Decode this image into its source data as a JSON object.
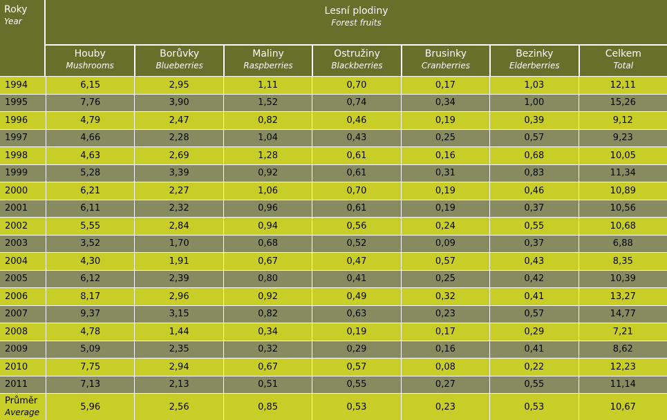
{
  "header": {
    "year_cz": "Roky",
    "year_en": "Year",
    "group_cz": "Lesní plodiny",
    "group_en": "Forest fruits",
    "columns": [
      {
        "cz": "Houby",
        "en": "Mushrooms"
      },
      {
        "cz": "Borůvky",
        "en": "Blueberries"
      },
      {
        "cz": "Maliny",
        "en": "Raspberries"
      },
      {
        "cz": "Ostružiny",
        "en": "Blackberries"
      },
      {
        "cz": "Brusinky",
        "en": "Cranberries"
      },
      {
        "cz": "Bezinky",
        "en": "Elderberries"
      },
      {
        "cz": "Celkem",
        "en": "Total"
      }
    ]
  },
  "rows": [
    {
      "year": "1994",
      "values": [
        "6,15",
        "2,95",
        "1,11",
        "0,70",
        "0,17",
        "1,03",
        "12,11"
      ]
    },
    {
      "year": "1995",
      "values": [
        "7,76",
        "3,90",
        "1,52",
        "0,74",
        "0,34",
        "1,00",
        "15,26"
      ]
    },
    {
      "year": "1996",
      "values": [
        "4,79",
        "2,47",
        "0,82",
        "0,46",
        "0,19",
        "0,39",
        "9,12"
      ]
    },
    {
      "year": "1997",
      "values": [
        "4,66",
        "2,28",
        "1,04",
        "0,43",
        "0,25",
        "0,57",
        "9,23"
      ]
    },
    {
      "year": "1998",
      "values": [
        "4,63",
        "2,69",
        "1,28",
        "0,61",
        "0,16",
        "0,68",
        "10,05"
      ]
    },
    {
      "year": "1999",
      "values": [
        "5,28",
        "3,39",
        "0,92",
        "0,61",
        "0,31",
        "0,83",
        "11,34"
      ]
    },
    {
      "year": "2000",
      "values": [
        "6,21",
        "2,27",
        "1,06",
        "0,70",
        "0,19",
        "0,46",
        "10,89"
      ]
    },
    {
      "year": "2001",
      "values": [
        "6,11",
        "2,32",
        "0,96",
        "0,61",
        "0,19",
        "0,37",
        "10,56"
      ]
    },
    {
      "year": "2002",
      "values": [
        "5,55",
        "2,84",
        "0,94",
        "0,56",
        "0,24",
        "0,55",
        "10,68"
      ]
    },
    {
      "year": "2003",
      "values": [
        "3,52",
        "1,70",
        "0,68",
        "0,52",
        "0,09",
        "0,37",
        "6,88"
      ]
    },
    {
      "year": "2004",
      "values": [
        "4,30",
        "1,91",
        "0,67",
        "0,47",
        "0,57",
        "0,43",
        "8,35"
      ]
    },
    {
      "year": "2005",
      "values": [
        "6,12",
        "2,39",
        "0,80",
        "0,41",
        "0,25",
        "0,42",
        "10,39"
      ]
    },
    {
      "year": "2006",
      "values": [
        "8,17",
        "2,96",
        "0,92",
        "0,49",
        "0,32",
        "0,41",
        "13,27"
      ]
    },
    {
      "year": "2007",
      "values": [
        "9,37",
        "3,15",
        "0,82",
        "0,63",
        "0,23",
        "0,57",
        "14,77"
      ]
    },
    {
      "year": "2008",
      "values": [
        "4,78",
        "1,44",
        "0,34",
        "0,19",
        "0,17",
        "0,29",
        "7,21"
      ]
    },
    {
      "year": "2009",
      "values": [
        "5,09",
        "2,35",
        "0,32",
        "0,29",
        "0,16",
        "0,41",
        "8,62"
      ]
    },
    {
      "year": "2010",
      "values": [
        "7,75",
        "2,94",
        "0,67",
        "0,57",
        "0,08",
        "0,22",
        "12,23"
      ]
    },
    {
      "year": "2011",
      "values": [
        "7,13",
        "2,13",
        "0,51",
        "0,55",
        "0,27",
        "0,55",
        "11,14"
      ]
    }
  ],
  "average": {
    "label_cz": "Průměr",
    "label_en": "Average",
    "values": [
      "5,96",
      "2,56",
      "0,85",
      "0,53",
      "0,23",
      "0,53",
      "10,67"
    ]
  },
  "colors": {
    "header_bg": "#66702a",
    "row_light": "#c9cd27",
    "row_dark": "#888b60"
  }
}
